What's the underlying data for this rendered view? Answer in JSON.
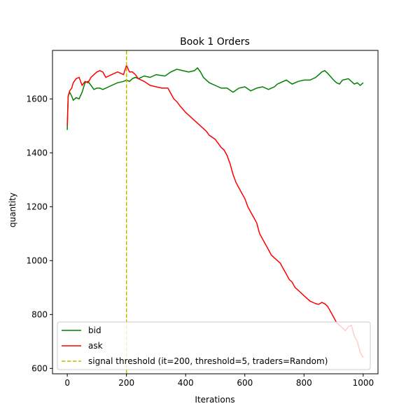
{
  "chart_data": {
    "type": "line",
    "title": "Book 1 Orders",
    "xlabel": "Iterations",
    "ylabel": "quantity",
    "xlim": [
      -50,
      1050
    ],
    "ylim": [
      580,
      1780
    ],
    "xticks": [
      0,
      200,
      400,
      600,
      800,
      1000
    ],
    "yticks": [
      600,
      800,
      1000,
      1200,
      1400,
      1600
    ],
    "grid": false,
    "legend_position": "lower-left",
    "series": [
      {
        "name": "bid",
        "color": "#008000",
        "x": [
          0,
          3,
          8,
          15,
          20,
          25,
          30,
          40,
          50,
          60,
          70,
          80,
          90,
          100,
          110,
          120,
          130,
          150,
          170,
          190,
          200,
          210,
          220,
          230,
          240,
          260,
          280,
          300,
          330,
          350,
          370,
          390,
          410,
          430,
          440,
          450,
          460,
          470,
          480,
          500,
          520,
          540,
          560,
          580,
          600,
          620,
          640,
          660,
          680,
          700,
          710,
          720,
          740,
          760,
          780,
          800,
          820,
          840,
          860,
          870,
          880,
          900,
          910,
          920,
          930,
          950,
          960,
          970,
          980,
          990,
          1000
        ],
        "y": [
          1485,
          1610,
          1625,
          1610,
          1595,
          1600,
          1605,
          1600,
          1625,
          1660,
          1665,
          1650,
          1635,
          1640,
          1640,
          1635,
          1640,
          1650,
          1660,
          1665,
          1670,
          1665,
          1675,
          1680,
          1675,
          1685,
          1680,
          1690,
          1685,
          1700,
          1710,
          1705,
          1700,
          1705,
          1715,
          1700,
          1680,
          1670,
          1660,
          1650,
          1640,
          1640,
          1625,
          1640,
          1645,
          1630,
          1640,
          1645,
          1635,
          1645,
          1655,
          1660,
          1670,
          1655,
          1665,
          1670,
          1670,
          1680,
          1700,
          1705,
          1695,
          1670,
          1660,
          1655,
          1670,
          1675,
          1665,
          1655,
          1660,
          1650,
          1660
        ]
      },
      {
        "name": "ask",
        "color": "#ff0000",
        "x": [
          0,
          3,
          8,
          15,
          20,
          30,
          40,
          50,
          60,
          70,
          80,
          90,
          100,
          110,
          120,
          130,
          150,
          170,
          190,
          200,
          210,
          220,
          230,
          240,
          260,
          280,
          300,
          320,
          340,
          350,
          360,
          370,
          380,
          400,
          420,
          440,
          460,
          470,
          480,
          500,
          510,
          520,
          530,
          540,
          550,
          560,
          570,
          580,
          590,
          600,
          610,
          620,
          630,
          640,
          650,
          660,
          670,
          680,
          690,
          700,
          710,
          720,
          730,
          740,
          750,
          760,
          770,
          780,
          790,
          800,
          810,
          820,
          830,
          840,
          850,
          860,
          870,
          880,
          890,
          900,
          910,
          920,
          930,
          940,
          950,
          960,
          970,
          980,
          990,
          1000
        ],
        "y": [
          1500,
          1610,
          1630,
          1640,
          1660,
          1675,
          1680,
          1650,
          1665,
          1660,
          1680,
          1690,
          1700,
          1705,
          1700,
          1680,
          1690,
          1700,
          1690,
          1725,
          1700,
          1700,
          1690,
          1675,
          1665,
          1650,
          1645,
          1640,
          1640,
          1620,
          1600,
          1590,
          1575,
          1550,
          1530,
          1510,
          1490,
          1480,
          1465,
          1450,
          1435,
          1420,
          1410,
          1390,
          1360,
          1320,
          1290,
          1270,
          1250,
          1230,
          1200,
          1180,
          1160,
          1140,
          1100,
          1080,
          1060,
          1040,
          1020,
          1010,
          1000,
          990,
          970,
          950,
          930,
          920,
          900,
          890,
          880,
          870,
          860,
          850,
          845,
          840,
          838,
          845,
          840,
          830,
          810,
          790,
          770,
          760,
          750,
          740,
          755,
          760,
          720,
          700,
          660,
          640
        ]
      },
      {
        "name": "signal threshold (it=200, threshold=5, traders=Random)",
        "color": "#bfbf00",
        "style": "dashed",
        "x": [
          200,
          200
        ],
        "y": [
          580,
          1780
        ]
      }
    ]
  }
}
